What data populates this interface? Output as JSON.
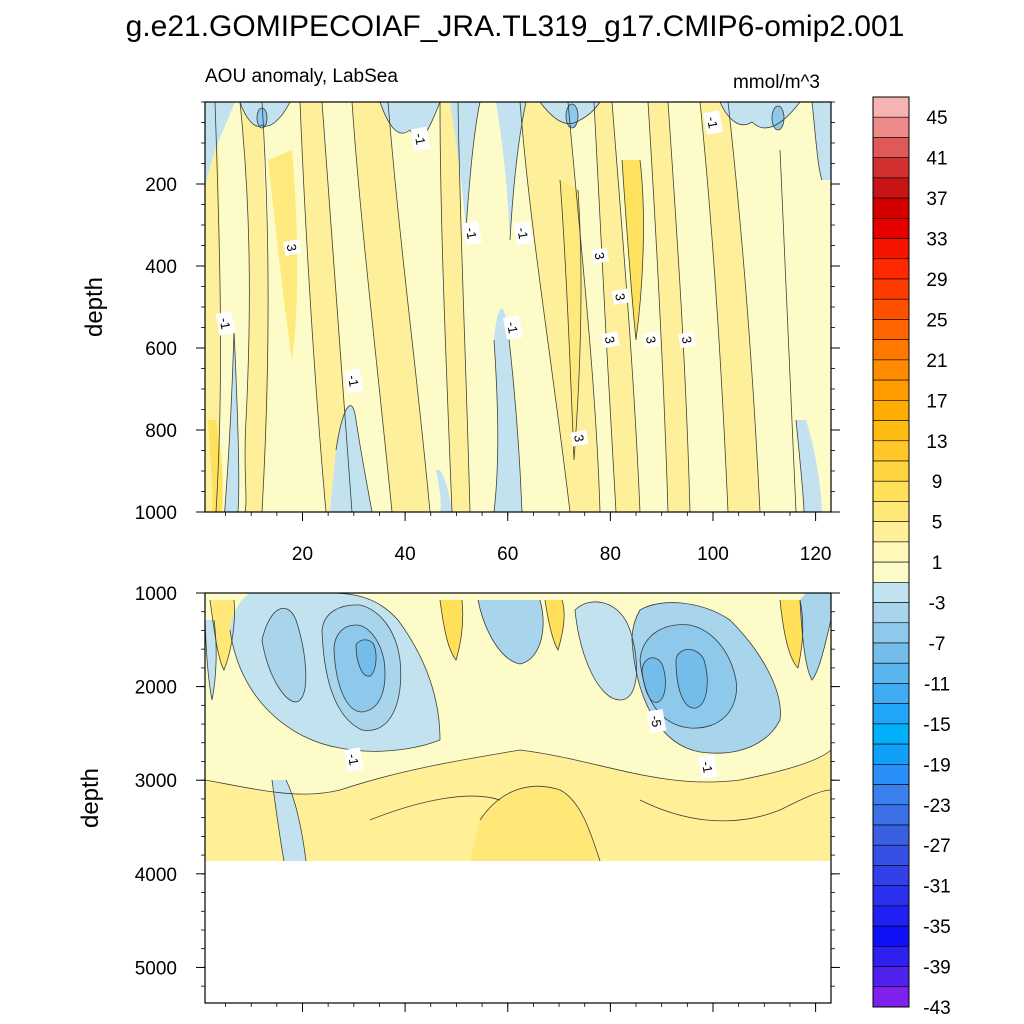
{
  "chart_data": [
    {
      "type": "heatmap",
      "panel": "upper",
      "title": "g.e21.GOMIPECOIAF_JRA.TL319_g17.CMIP6-omip2.001",
      "left_subtitle": "AOU anomaly, LabSea",
      "right_subtitle": "mmol/m^3",
      "xlabel": "",
      "ylabel": "depth",
      "xlim": [
        1,
        123
      ],
      "ylim": [
        1000,
        0
      ],
      "xticks": [
        20,
        40,
        60,
        80,
        100,
        120
      ],
      "yticks": [
        200,
        400,
        600,
        800,
        1000
      ],
      "contour_labels": [
        {
          "text": "-1",
          "x": 43,
          "y": 90
        },
        {
          "text": "-1",
          "x": 100,
          "y": 50
        },
        {
          "text": "3",
          "x": 18,
          "y": 355
        },
        {
          "text": "-1",
          "x": 53,
          "y": 320
        },
        {
          "text": "-1",
          "x": 63,
          "y": 320
        },
        {
          "text": "3",
          "x": 78,
          "y": 375
        },
        {
          "text": "3",
          "x": 82,
          "y": 475
        },
        {
          "text": "-1",
          "x": 5,
          "y": 540
        },
        {
          "text": "-1",
          "x": 61,
          "y": 550
        },
        {
          "text": "3",
          "x": 80,
          "y": 580
        },
        {
          "text": "3",
          "x": 88,
          "y": 580
        },
        {
          "text": "3",
          "x": 95,
          "y": 580
        },
        {
          "text": "-1",
          "x": 30,
          "y": 680
        },
        {
          "text": "3",
          "x": 74,
          "y": 820
        }
      ]
    },
    {
      "type": "heatmap",
      "panel": "lower",
      "xlabel": "",
      "ylabel": "depth",
      "xlim": [
        1,
        123
      ],
      "ylim": [
        5380,
        1000
      ],
      "yticks": [
        1000,
        2000,
        3000,
        4000,
        5000
      ],
      "contour_labels": [
        {
          "text": "-1",
          "x": 30,
          "y": 2780
        },
        {
          "text": "-5",
          "x": 89,
          "y": 2370
        },
        {
          "text": "-1",
          "x": 99,
          "y": 2860
        }
      ]
    }
  ],
  "colorbar": {
    "labels": [
      "45",
      "41",
      "37",
      "33",
      "29",
      "25",
      "21",
      "17",
      "13",
      "9",
      "5",
      "1",
      "-3",
      "-7",
      "-11",
      "-15",
      "-19",
      "-23",
      "-27",
      "-31",
      "-35",
      "-39",
      "-43"
    ],
    "colors_top_to_bottom": [
      "#f6b3b3",
      "#ee8a8a",
      "#e05858",
      "#d23030",
      "#c81414",
      "#d40000",
      "#e60000",
      "#f41400",
      "#ff2800",
      "#ff3c00",
      "#ff5000",
      "#ff6400",
      "#ff7800",
      "#ff8c00",
      "#ff9c00",
      "#ffac00",
      "#ffbc10",
      "#ffc828",
      "#ffd440",
      "#ffe058",
      "#ffe878",
      "#fff098",
      "#fff8b8",
      "#fdfcc8",
      "#c2e2f0",
      "#a8d4ec",
      "#8ec8ea",
      "#74bcea",
      "#5ab4ee",
      "#40aaf2",
      "#20a6f8",
      "#00b0f8",
      "#10a0fa",
      "#2890f8",
      "#3a80ee",
      "#3c70e6",
      "#3a60e2",
      "#3650e6",
      "#3240ea",
      "#2a30ee",
      "#2020f2",
      "#1010f6",
      "#3020f0",
      "#5020ec",
      "#8020ec"
    ]
  }
}
